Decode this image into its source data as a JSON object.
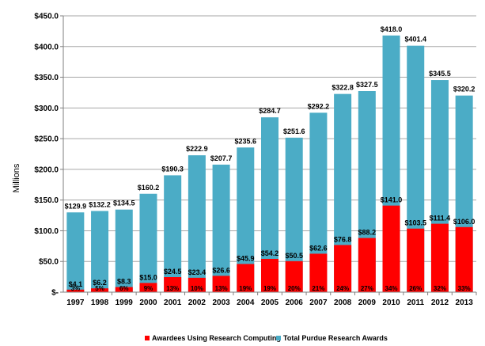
{
  "chart_data": {
    "type": "bar",
    "categories": [
      "1997",
      "1998",
      "1999",
      "2000",
      "2001",
      "2002",
      "2003",
      "2004",
      "2005",
      "2006",
      "2007",
      "2008",
      "2009",
      "2010",
      "2011",
      "2012",
      "2013"
    ],
    "series": [
      {
        "name": "Total Purdue Research Awards",
        "color": "#4bacc6",
        "values": [
          129.9,
          132.2,
          134.5,
          160.2,
          190.3,
          222.9,
          207.7,
          235.6,
          284.7,
          251.6,
          292.2,
          322.8,
          327.5,
          418.0,
          401.4,
          345.5,
          320.2
        ],
        "labels": [
          "$129.9",
          "$132.2",
          "$134.5",
          "$160.2",
          "$190.3",
          "$222.9",
          "$207.7",
          "$235.6",
          "$284.7",
          "$251.6",
          "$292.2",
          "$322.8",
          "$327.5",
          "$418.0",
          "$401.4",
          "$345.5",
          "$320.2"
        ]
      },
      {
        "name": "Awardees Using Research Computing",
        "color": "#ff0000",
        "values": [
          4.1,
          6.2,
          8.3,
          15.0,
          24.5,
          23.4,
          26.6,
          45.9,
          54.2,
          50.5,
          62.6,
          76.8,
          88.2,
          141.0,
          103.5,
          111.4,
          106.0
        ],
        "labels": [
          "$4.1",
          "$6.2",
          "$8.3",
          "$15.0",
          "$24.5",
          "$23.4",
          "$26.6",
          "$45.9",
          "$54.2",
          "$50.5",
          "$62.6",
          "$76.8",
          "$88.2",
          "$141.0",
          "$103.5",
          "$111.4",
          "$106.0"
        ],
        "percent_labels": [
          "3%",
          "5%",
          "6%",
          "9%",
          "13%",
          "10%",
          "13%",
          "19%",
          "19%",
          "20%",
          "21%",
          "24%",
          "27%",
          "34%",
          "26%",
          "32%",
          "33%"
        ]
      }
    ],
    "ylabel": "Millions",
    "ylim": [
      0,
      450
    ],
    "y_ticks": [
      {
        "value": 0,
        "label": "$-"
      },
      {
        "value": 50,
        "label": "$50.0"
      },
      {
        "value": 100,
        "label": "$100.0"
      },
      {
        "value": 150,
        "label": "$150.0"
      },
      {
        "value": 200,
        "label": "$200.0"
      },
      {
        "value": 250,
        "label": "$250.0"
      },
      {
        "value": 300,
        "label": "$300.0"
      },
      {
        "value": 350,
        "label": "$350.0"
      },
      {
        "value": 400,
        "label": "$400.0"
      },
      {
        "value": 450,
        "label": "$450.0"
      }
    ],
    "grid": true,
    "legend": {
      "placement": "bottom",
      "entries": [
        {
          "label": "Awardees Using Research Computing",
          "color": "#ff0000"
        },
        {
          "label": "Total Purdue Research Awards",
          "color": "#4bacc6"
        }
      ]
    }
  }
}
